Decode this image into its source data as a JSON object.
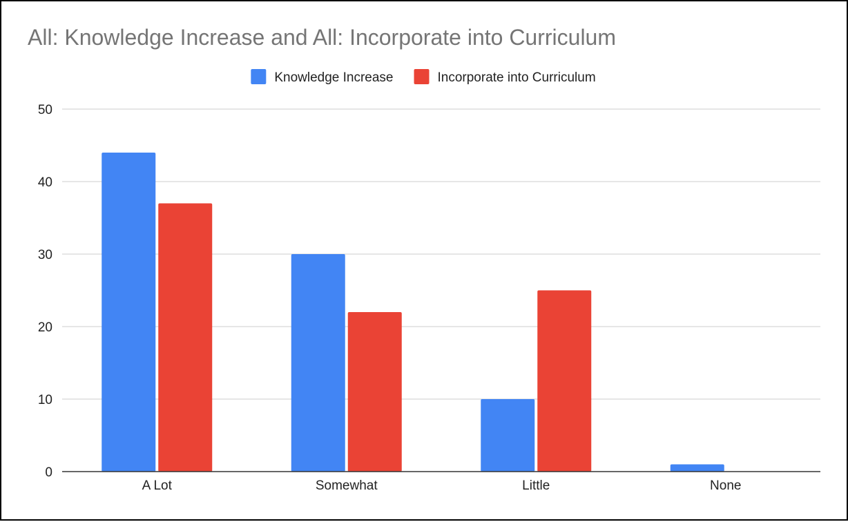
{
  "chart_data": {
    "type": "bar",
    "title": "All: Knowledge Increase and All: Incorporate into Curriculum",
    "xlabel": "",
    "ylabel": "",
    "categories": [
      "A Lot",
      "Somewhat",
      "Little",
      "None"
    ],
    "series": [
      {
        "name": "Knowledge Increase",
        "color": "#4285F4",
        "values": [
          44,
          30,
          10,
          1
        ]
      },
      {
        "name": "Incorporate into Curriculum",
        "color": "#EA4335",
        "values": [
          37,
          22,
          25,
          0
        ]
      }
    ],
    "ylim": [
      0,
      50
    ],
    "yticks": [
      "0",
      "10",
      "20",
      "30",
      "40",
      "50"
    ],
    "grid": true,
    "legend": "top-center"
  }
}
